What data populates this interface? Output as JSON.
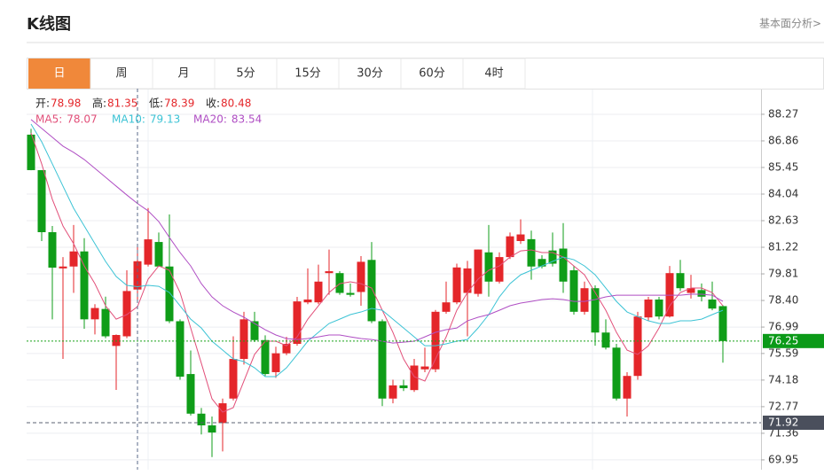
{
  "header": {
    "title": "K线图",
    "link": "基本面分析>"
  },
  "tabs": [
    "日",
    "周",
    "月",
    "5分",
    "15分",
    "30分",
    "60分",
    "4时"
  ],
  "chart_data": {
    "type": "candlestick",
    "info_labels": [
      "开:",
      "高:",
      "低:",
      "收:"
    ],
    "crosshair_index": 10,
    "up_color": "#e4262a",
    "down_color": "#0f9d18",
    "open": [
      87.19,
      85.31,
      82.02,
      80.1,
      80.2,
      81.0,
      77.4,
      77.95,
      75.99,
      76.5,
      78.98,
      80.3,
      81.5,
      80.2,
      77.3,
      74.5,
      72.4,
      71.78,
      71.9,
      73.2,
      75.3,
      77.3,
      76.3,
      74.6,
      75.6,
      76.1,
      78.3,
      78.3,
      79.85,
      79.85,
      78.8,
      78.85,
      80.55,
      77.3,
      73.2,
      73.9,
      73.65,
      74.75,
      74.75,
      77.8,
      78.3,
      78.8,
      78.75,
      80.95,
      79.4,
      80.7,
      81.55,
      81.65,
      80.6,
      81.05,
      81.15,
      80.0,
      77.8,
      79.05,
      76.7,
      75.9,
      73.2,
      74.4,
      77.5,
      78.45,
      77.55,
      79.85,
      78.8,
      78.95,
      78.45,
      78.1
    ],
    "high": [
      87.5,
      85.31,
      82.35,
      80.7,
      82.4,
      81.7,
      78.2,
      78.6,
      76.6,
      80.0,
      81.35,
      83.3,
      82.0,
      82.96,
      77.4,
      75.75,
      72.7,
      72.25,
      73.2,
      76.5,
      77.8,
      77.8,
      76.55,
      75.95,
      76.47,
      78.59,
      80.1,
      80.3,
      81.1,
      79.95,
      79.3,
      80.75,
      81.5,
      77.4,
      74.2,
      74.2,
      75.3,
      75.9,
      77.9,
      79.4,
      80.35,
      80.5,
      81.1,
      82.4,
      80.95,
      82.0,
      82.7,
      82.1,
      80.8,
      82.0,
      82.5,
      80.23,
      79.4,
      79.2,
      77.4,
      76.1,
      74.6,
      77.8,
      78.59,
      78.59,
      80.23,
      80.55,
      79.76,
      79.3,
      79.4,
      78.15
    ],
    "low": [
      85.3,
      81.55,
      77.4,
      75.3,
      78.8,
      76.9,
      76.6,
      76.4,
      73.66,
      76.4,
      78.39,
      80.2,
      80.2,
      77.2,
      74.2,
      72.3,
      71.3,
      70.1,
      70.4,
      73.1,
      75.0,
      76.2,
      74.4,
      74.3,
      75.5,
      76.0,
      78.2,
      78.2,
      78.7,
      78.7,
      78.6,
      78.12,
      77.2,
      72.8,
      72.95,
      73.6,
      73.55,
      74.6,
      74.6,
      77.7,
      78.2,
      76.5,
      78.6,
      78.6,
      79.3,
      80.6,
      81.4,
      79.5,
      80.1,
      80.2,
      78.8,
      77.65,
      77.65,
      76.0,
      75.8,
      73.1,
      72.25,
      74.2,
      77.3,
      77.4,
      77.5,
      78.9,
      78.5,
      78.35,
      77.88,
      75.1
    ],
    "close": [
      85.31,
      82.02,
      80.14,
      80.2,
      81.0,
      77.4,
      78.0,
      76.5,
      76.57,
      78.9,
      80.48,
      81.64,
      80.2,
      77.3,
      74.36,
      72.4,
      71.78,
      71.4,
      72.95,
      75.3,
      77.4,
      76.3,
      74.5,
      75.6,
      76.1,
      78.35,
      78.45,
      79.4,
      79.95,
      78.8,
      78.7,
      80.45,
      77.3,
      73.2,
      73.9,
      73.75,
      74.95,
      74.9,
      77.8,
      78.3,
      80.15,
      80.1,
      81.1,
      79.4,
      80.7,
      81.8,
      81.9,
      80.2,
      80.2,
      80.35,
      79.4,
      77.8,
      79.05,
      76.7,
      75.9,
      73.2,
      74.4,
      77.55,
      78.45,
      77.55,
      79.85,
      79.05,
      79.05,
      78.6,
      77.97,
      76.25
    ],
    "series": [
      {
        "name": "MA5:",
        "color": "#e2507a",
        "values": [
          87.28,
          85.64,
          83.76,
          82.35,
          81.41,
          80.23,
          79.29,
          78.12,
          77.41,
          77.65,
          78.07,
          79.53,
          80.23,
          80.0,
          78.82,
          76.94,
          75.07,
          73.19,
          72.48,
          72.72,
          74.13,
          75.54,
          76.24,
          76.24,
          76.0,
          76.47,
          77.41,
          78.12,
          78.82,
          79.29,
          79.39,
          79.29,
          79.06,
          77.88,
          76.71,
          75.3,
          74.36,
          74.13,
          75.3,
          76.47,
          77.88,
          78.82,
          79.53,
          80.0,
          80.23,
          80.7,
          81.03,
          81.08,
          80.94,
          80.94,
          80.7,
          80.23,
          79.76,
          78.82,
          77.88,
          76.71,
          75.77,
          75.54,
          76.0,
          76.94,
          78.12,
          78.82,
          79.06,
          79.06,
          78.82,
          78.12
        ]
      },
      {
        "name": "MA10:",
        "color": "#3cc3d5",
        "values": [
          87.75,
          86.81,
          85.64,
          84.46,
          83.29,
          82.35,
          81.41,
          80.47,
          79.67,
          79.2,
          79.13,
          79.2,
          79.15,
          78.82,
          78.12,
          77.41,
          76.94,
          76.24,
          75.77,
          75.3,
          75.16,
          74.83,
          74.36,
          74.36,
          74.83,
          75.53,
          76.24,
          76.71,
          77.18,
          77.41,
          77.65,
          77.79,
          77.98,
          77.88,
          77.41,
          76.94,
          76.47,
          76.0,
          76.0,
          76.1,
          76.24,
          76.33,
          76.94,
          77.65,
          78.59,
          79.29,
          79.76,
          80.0,
          80.23,
          80.47,
          80.7,
          80.56,
          80.23,
          79.76,
          79.06,
          78.35,
          77.79,
          77.55,
          77.32,
          77.18,
          77.18,
          77.32,
          77.32,
          77.41,
          77.65,
          77.88
        ]
      },
      {
        "name": "MA20:",
        "color": "#b04fc4",
        "values": [
          87.99,
          87.52,
          87.05,
          86.58,
          86.25,
          85.87,
          85.4,
          84.93,
          84.46,
          83.99,
          83.54,
          83.15,
          82.58,
          81.74,
          80.94,
          80.23,
          79.29,
          78.59,
          78.12,
          77.79,
          77.51,
          77.18,
          76.85,
          76.57,
          76.38,
          76.33,
          76.38,
          76.47,
          76.57,
          76.57,
          76.47,
          76.38,
          76.33,
          76.24,
          76.14,
          76.19,
          76.24,
          76.47,
          76.71,
          76.85,
          76.94,
          77.32,
          77.51,
          77.65,
          77.88,
          78.12,
          78.26,
          78.35,
          78.45,
          78.49,
          78.45,
          78.35,
          78.35,
          78.45,
          78.59,
          78.68,
          78.68,
          78.68,
          78.68,
          78.68,
          78.68,
          78.68,
          78.73,
          78.73,
          78.68,
          78.35
        ]
      }
    ],
    "last_price": 76.25,
    "marker_price": 71.92,
    "ylim": [
      69.43,
      89.63
    ],
    "yticks": [
      88.27,
      86.86,
      85.45,
      84.04,
      82.63,
      81.22,
      79.81,
      {
        "value": 78.4,
        "label": "78.40"
      },
      76.99,
      75.59,
      74.18,
      72.77,
      71.36,
      69.95
    ],
    "grid": true
  }
}
